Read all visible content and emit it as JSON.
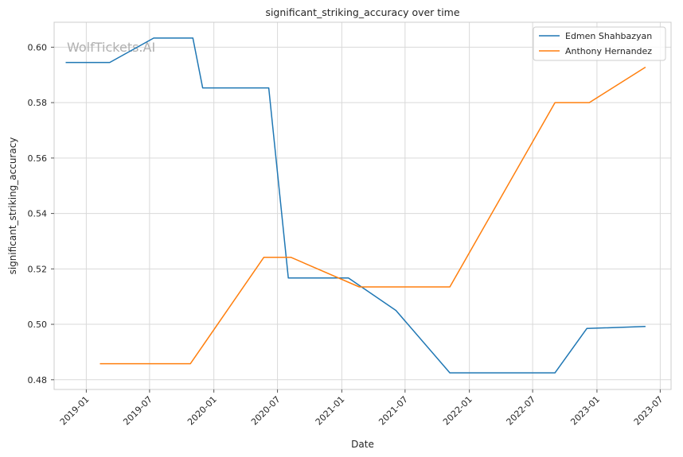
{
  "chart_data": {
    "type": "line",
    "title": "significant_striking_accuracy over time",
    "xlabel": "Date",
    "ylabel": "significant_striking_accuracy",
    "watermark": "WolfTickets.AI",
    "grid": true,
    "legend_position": "top-right",
    "x_range": [
      "2018-10-01",
      "2023-08-01"
    ],
    "ylim": [
      0.4765,
      0.609
    ],
    "x_ticks": [
      "2019-01",
      "2019-07",
      "2020-01",
      "2020-07",
      "2021-01",
      "2021-07",
      "2022-01",
      "2022-07",
      "2023-01",
      "2023-07"
    ],
    "y_ticks": [
      "0.48",
      "0.50",
      "0.52",
      "0.54",
      "0.56",
      "0.58",
      "0.60"
    ],
    "series": [
      {
        "name": "Edmen Shahbazyan",
        "color": "#1f77b4",
        "points": [
          {
            "x": "2018-11-03",
            "y": 0.5945
          },
          {
            "x": "2019-03-09",
            "y": 0.5945
          },
          {
            "x": "2019-07-13",
            "y": 0.6033
          },
          {
            "x": "2019-11-02",
            "y": 0.6033
          },
          {
            "x": "2019-11-30",
            "y": 0.5853
          },
          {
            "x": "2020-06-06",
            "y": 0.5853
          },
          {
            "x": "2020-08-01",
            "y": 0.5167
          },
          {
            "x": "2021-01-20",
            "y": 0.5167
          },
          {
            "x": "2021-06-05",
            "y": 0.505
          },
          {
            "x": "2021-11-06",
            "y": 0.4825
          },
          {
            "x": "2022-07-30",
            "y": 0.4825
          },
          {
            "x": "2022-09-03",
            "y": 0.4825
          },
          {
            "x": "2022-12-03",
            "y": 0.4985
          },
          {
            "x": "2023-05-20",
            "y": 0.4992
          }
        ]
      },
      {
        "name": "Anthony Hernandez",
        "color": "#ff7f0e",
        "points": [
          {
            "x": "2019-02-09",
            "y": 0.4858
          },
          {
            "x": "2019-10-26",
            "y": 0.4858
          },
          {
            "x": "2020-05-23",
            "y": 0.5242
          },
          {
            "x": "2020-08-08",
            "y": 0.5242
          },
          {
            "x": "2021-02-20",
            "y": 0.5135
          },
          {
            "x": "2021-11-06",
            "y": 0.5135
          },
          {
            "x": "2022-09-03",
            "y": 0.58
          },
          {
            "x": "2022-12-10",
            "y": 0.58
          },
          {
            "x": "2023-05-20",
            "y": 0.5928
          }
        ]
      }
    ]
  }
}
